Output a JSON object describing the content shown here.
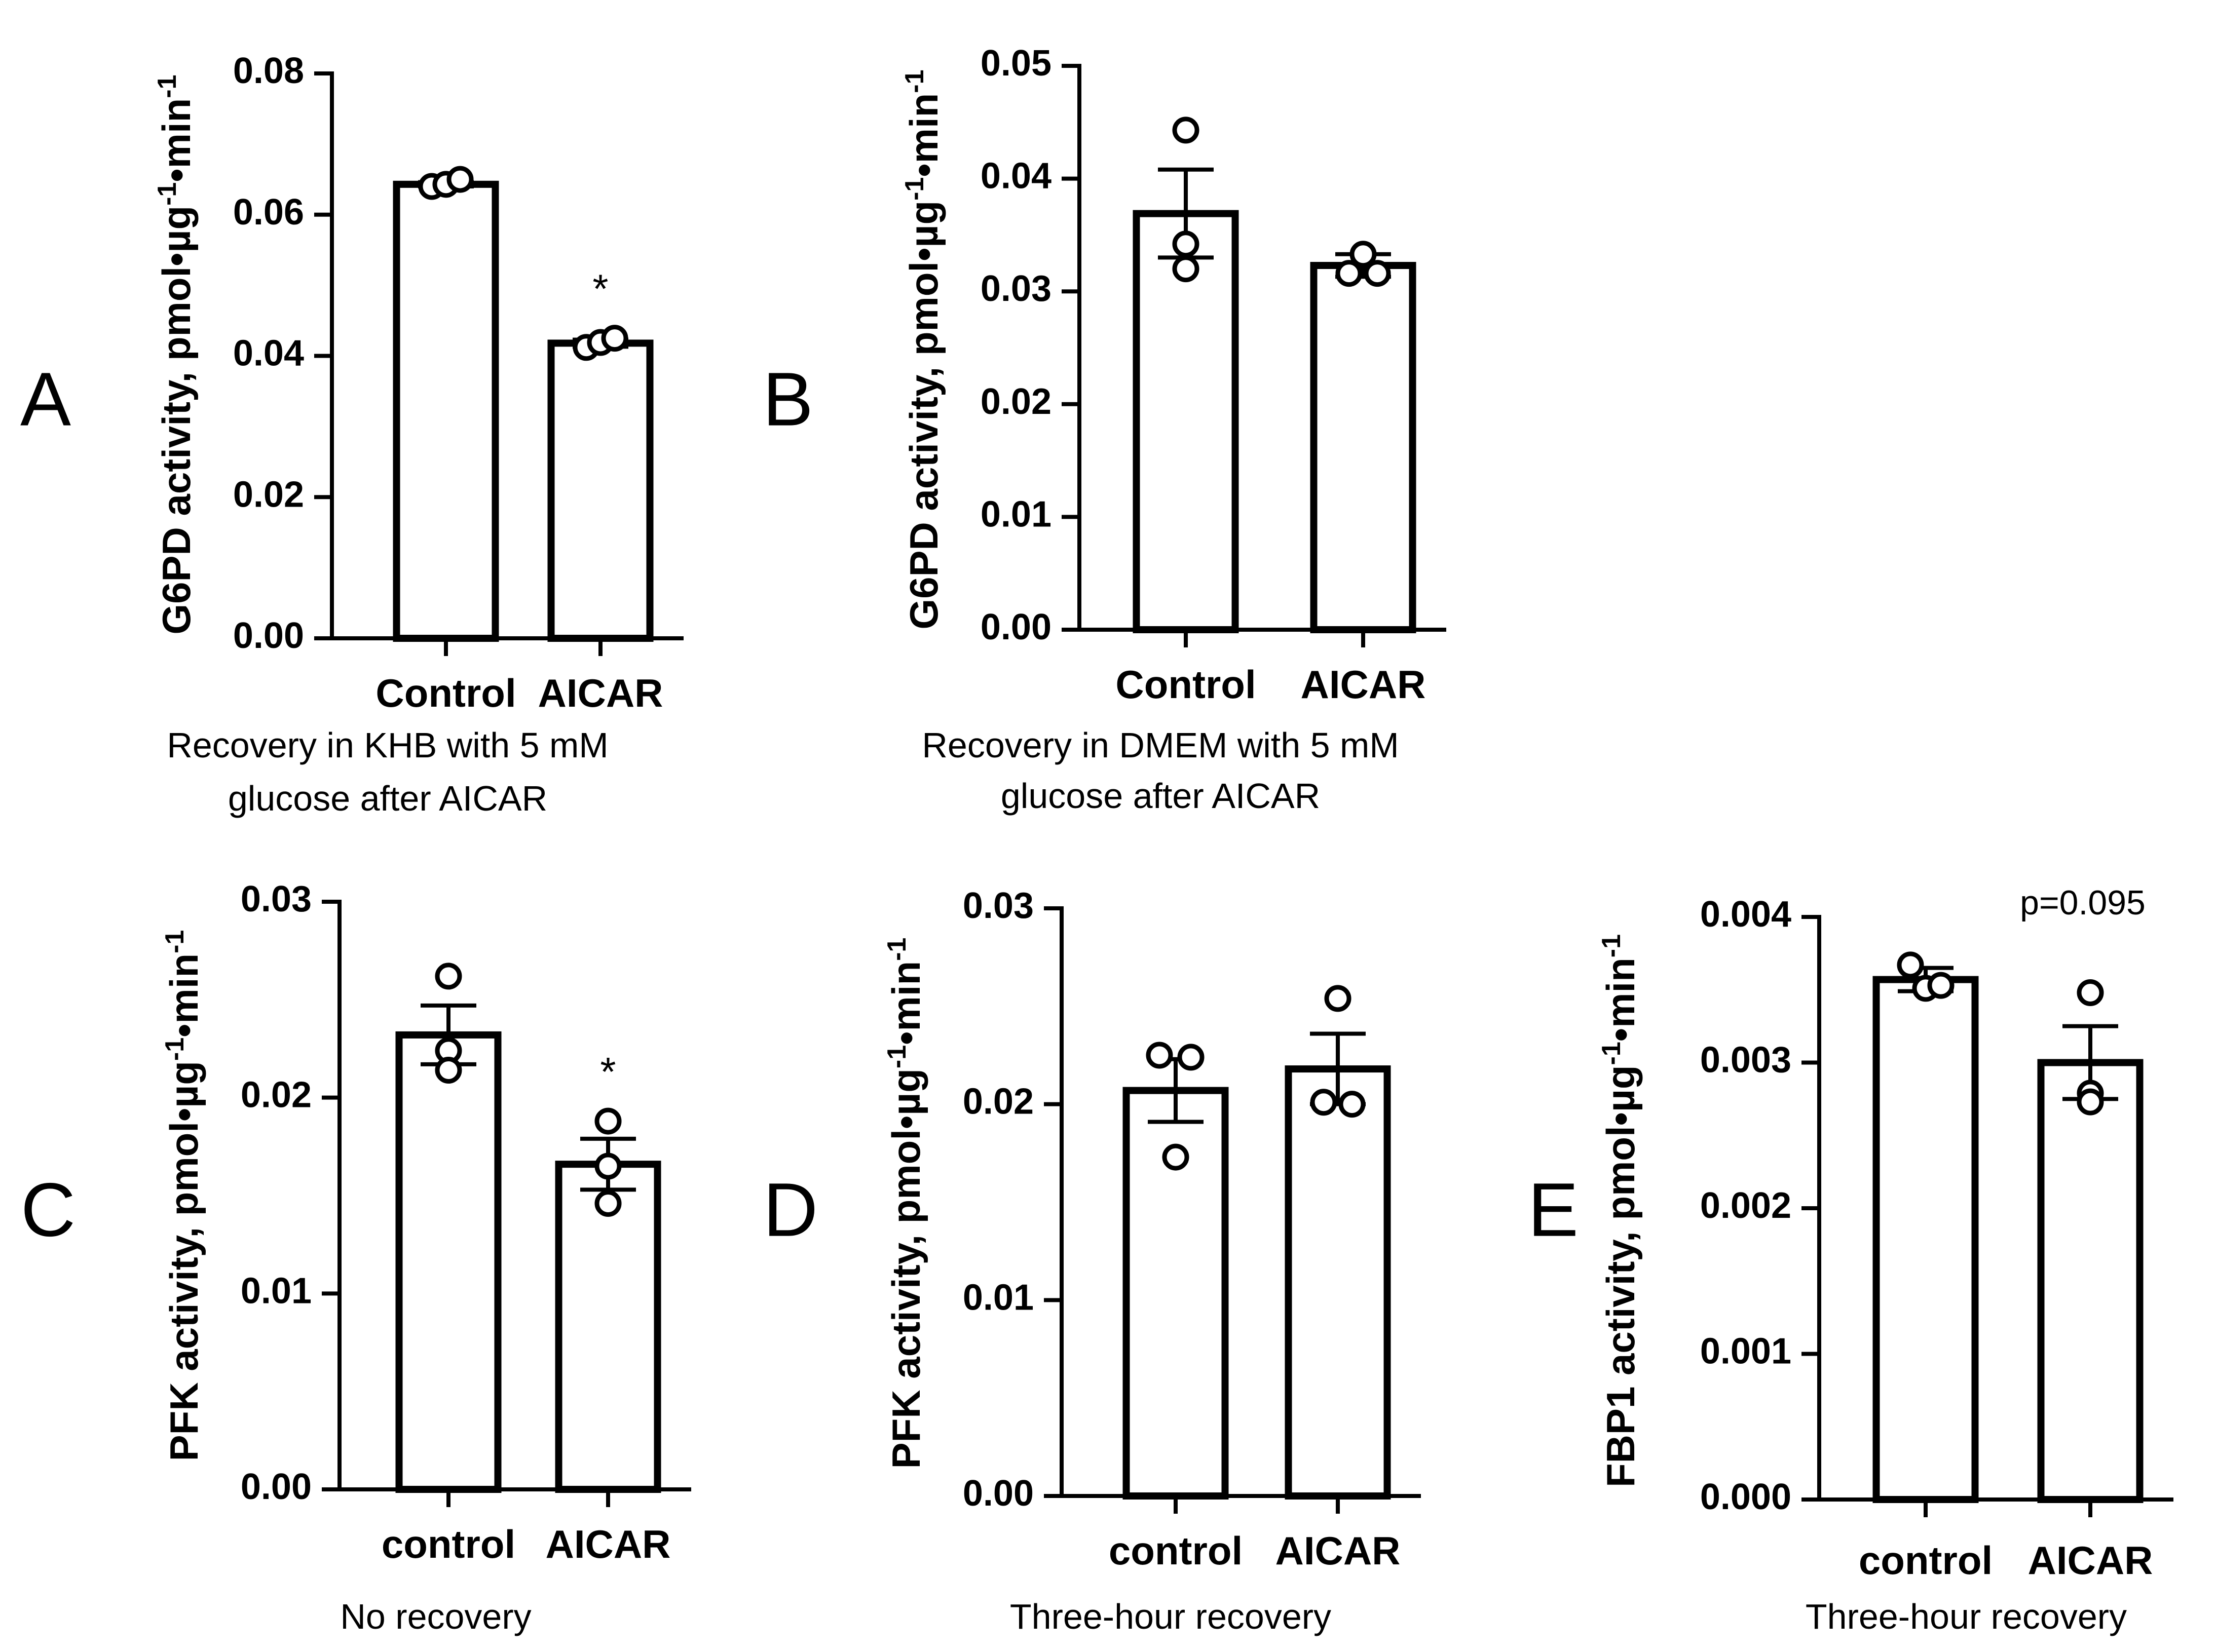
{
  "chart_data": [
    {
      "type": "bar",
      "panel": "A",
      "categories": [
        "Control",
        "AICAR"
      ],
      "values": [
        0.0643,
        0.0418
      ],
      "error_plus": [
        0.0003,
        0.0005
      ],
      "points": [
        [
          0.064,
          0.0643,
          0.065
        ],
        [
          0.0412,
          0.0419,
          0.0425
        ]
      ],
      "ylabel": "G6PD activity, pmol•µg-1•min-1",
      "ylabel_parts": {
        "base": "G6PD activity, pmol•µg",
        "sup1": "-1",
        "mid": "•min",
        "sup2": "-1"
      },
      "caption": [
        "Recovery in KHB with 5 mM",
        "glucose after AICAR"
      ],
      "ylim": [
        0,
        0.08
      ],
      "yticks": [
        "0.00",
        "0.02",
        "0.04",
        "0.06",
        "0.08"
      ],
      "annotations": [
        {
          "category": "AICAR",
          "text": "*"
        }
      ]
    },
    {
      "type": "bar",
      "panel": "B",
      "categories": [
        "Control",
        "AICAR"
      ],
      "values": [
        0.0369,
        0.0323
      ],
      "error_plus": [
        0.0039,
        0.001
      ],
      "points": [
        [
          0.0443,
          0.0342,
          0.032
        ],
        [
          0.0316,
          0.0316,
          0.0333
        ]
      ],
      "ylabel": "G6PD activity, pmol•µg-1•min-1",
      "ylabel_parts": {
        "base": "G6PD activity, pmol•µg",
        "sup1": "-1",
        "mid": "•min",
        "sup2": "-1"
      },
      "caption": [
        "Recovery in DMEM with 5 mM",
        "glucose after AICAR"
      ],
      "ylim": [
        0,
        0.05
      ],
      "yticks": [
        "0.00",
        "0.01",
        "0.02",
        "0.03",
        "0.04",
        "0.05"
      ],
      "annotations": []
    },
    {
      "type": "bar",
      "panel": "C",
      "categories": [
        "control",
        "AICAR"
      ],
      "values": [
        0.0232,
        0.0166
      ],
      "error_plus": [
        0.0015,
        0.0013
      ],
      "points": [
        [
          0.0262,
          0.0224,
          0.0214
        ],
        [
          0.0188,
          0.0165,
          0.0146
        ]
      ],
      "ylabel": "PFK activity, pmol•µg-1•min-1",
      "ylabel_parts": {
        "base": "PFK activity, pmol•µg",
        "sup1": "-1",
        "mid": "•min",
        "sup2": "-1"
      },
      "caption": [
        "No recovery"
      ],
      "ylim": [
        0,
        0.03
      ],
      "yticks": [
        "0.00",
        "0.01",
        "0.02",
        "0.03"
      ],
      "annotations": [
        {
          "category": "AICAR",
          "text": "*"
        }
      ]
    },
    {
      "type": "bar",
      "panel": "D",
      "categories": [
        "control",
        "AICAR"
      ],
      "values": [
        0.0207,
        0.0218
      ],
      "error_plus": [
        0.0016,
        0.0018
      ],
      "points": [
        [
          0.0225,
          0.0224,
          0.0173
        ],
        [
          0.0254,
          0.0201,
          0.02
        ]
      ],
      "ylabel": "PFK activity, pmol•µg-1•min-1",
      "ylabel_parts": {
        "base": "PFK activity, pmol•µg",
        "sup1": "-1",
        "mid": "•min",
        "sup2": "-1"
      },
      "caption": [
        "Three-hour recovery"
      ],
      "ylim": [
        0,
        0.03
      ],
      "yticks": [
        "0.00",
        "0.01",
        "0.02",
        "0.03"
      ],
      "annotations": []
    },
    {
      "type": "bar",
      "panel": "E",
      "categories": [
        "control",
        "AICAR"
      ],
      "values": [
        0.00357,
        0.003
      ],
      "error_plus": [
        8e-05,
        0.00025
      ],
      "points": [
        [
          0.00367,
          0.00351,
          0.00353
        ],
        [
          0.00348,
          0.00279,
          0.00273
        ]
      ],
      "ylabel": "FBP1 activity, pmol•µg-1•min-1",
      "ylabel_parts": {
        "base": "FBP1 activity, pmol•µg",
        "sup1": "-1",
        "mid": "•min",
        "sup2": "-1"
      },
      "caption": [
        "Three-hour recovery"
      ],
      "ylim": [
        0,
        0.004
      ],
      "yticks": [
        "0.000",
        "0.001",
        "0.002",
        "0.003",
        "0.004"
      ],
      "annotations": [
        {
          "category": "top-right",
          "text": "p=0.095"
        }
      ]
    }
  ]
}
